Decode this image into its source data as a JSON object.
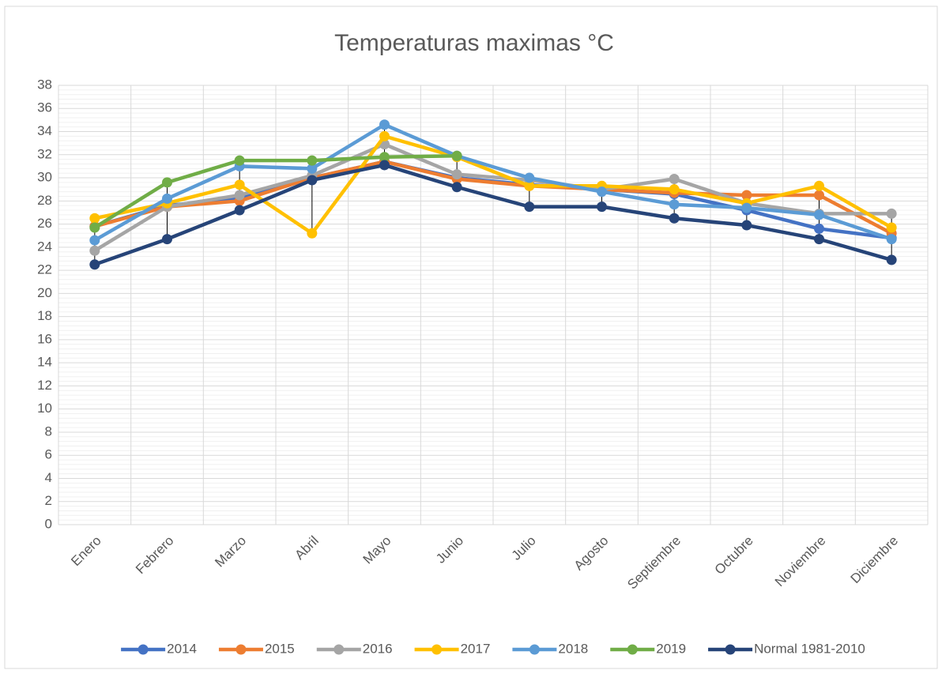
{
  "chart_data": {
    "type": "line",
    "title": "Temperaturas maximas °C",
    "categories": [
      "Enero",
      "Febrero",
      "Marzo",
      "Abril",
      "Mayo",
      "Junio",
      "Julio",
      "Agosto",
      "Septiembre",
      "Octubre",
      "Noviembre",
      "Diciembre"
    ],
    "series": [
      {
        "name": "2014",
        "color": "#4472c4",
        "values": [
          25.8,
          27.6,
          28.2,
          30.0,
          31.4,
          30.0,
          29.4,
          29.0,
          28.6,
          27.2,
          25.6,
          24.8
        ]
      },
      {
        "name": "2015",
        "color": "#ed7d31",
        "values": [
          25.8,
          27.5,
          28.0,
          30.0,
          31.4,
          29.9,
          29.3,
          29.0,
          28.7,
          28.5,
          28.5,
          25.2
        ]
      },
      {
        "name": "2016",
        "color": "#a5a5a5",
        "values": [
          23.7,
          27.5,
          28.5,
          30.2,
          32.9,
          30.3,
          29.8,
          29.0,
          29.9,
          27.8,
          26.9,
          26.9
        ]
      },
      {
        "name": "2017",
        "color": "#ffc000",
        "values": [
          26.5,
          27.8,
          29.4,
          25.2,
          33.6,
          31.8,
          29.3,
          29.3,
          29.0,
          27.8,
          29.3,
          25.7
        ]
      },
      {
        "name": "2018",
        "color": "#5b9bd5",
        "values": [
          24.6,
          28.2,
          31.0,
          30.8,
          34.6,
          31.9,
          30.0,
          28.8,
          27.7,
          27.4,
          26.8,
          24.7
        ]
      },
      {
        "name": "2019",
        "color": "#70ad47",
        "values": [
          25.7,
          29.6,
          31.5,
          31.5,
          31.8,
          31.9,
          null,
          null,
          null,
          null,
          null,
          null
        ]
      },
      {
        "name": "Normal 1981-2010",
        "color": "#264478",
        "values": [
          22.5,
          24.7,
          27.2,
          29.8,
          31.1,
          29.2,
          27.5,
          27.5,
          26.5,
          25.9,
          24.7,
          22.9
        ]
      }
    ],
    "ylim": [
      0,
      38
    ],
    "yticks": [
      0,
      2,
      4,
      6,
      8,
      10,
      12,
      14,
      16,
      18,
      20,
      22,
      24,
      26,
      28,
      30,
      32,
      34,
      36,
      38
    ],
    "grid": true,
    "minor_grid": true,
    "high_low_lines": true,
    "legend": "bottom"
  }
}
